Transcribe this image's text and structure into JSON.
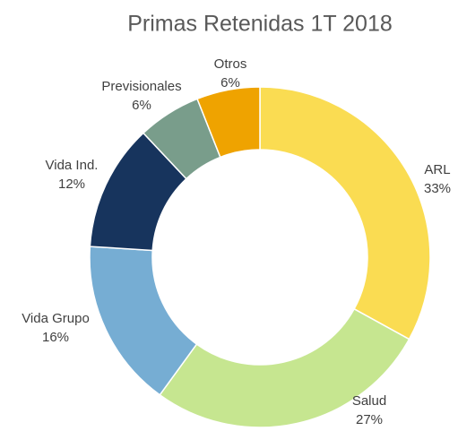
{
  "chart_data": {
    "type": "donut",
    "title": "Primas Retenidas 1T 2018",
    "categories": [
      "ARL",
      "Salud",
      "Vida Grupo",
      "Vida Ind.",
      "Previsionales",
      "Otros"
    ],
    "values": [
      33,
      27,
      16,
      12,
      6,
      6
    ],
    "value_labels": [
      "33%",
      "27%",
      "16%",
      "12%",
      "6%",
      "6%"
    ],
    "colors": [
      "#fadc52",
      "#c6e690",
      "#76add3",
      "#17345d",
      "#799d8b",
      "#efa300"
    ]
  }
}
